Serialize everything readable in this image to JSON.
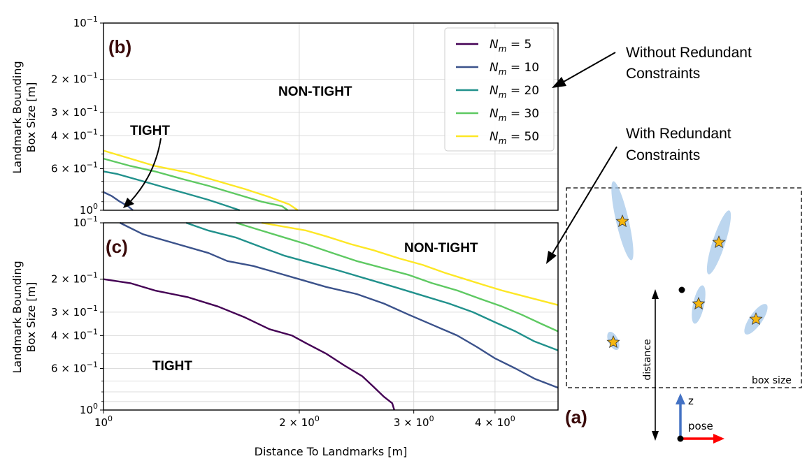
{
  "annotations": {
    "without_redundant": [
      "Without Redundant",
      "Constraints"
    ],
    "with_redundant": [
      "With Redundant",
      "Constraints"
    ]
  },
  "colors": {
    "5": "#440154",
    "10": "#3b528b",
    "20": "#21918c",
    "30": "#5ec962",
    "50": "#fde725",
    "ellipse": "#a6c8ea",
    "star": "#f5b60f",
    "z_arrow": "#4472c4",
    "pose_arrow": "#ff0000"
  },
  "chart_data": [
    {
      "type": "line",
      "panel_label": "(b)",
      "xlabel": "",
      "ylabel": "Landmark Bounding Box Size [m]",
      "ylabel_lines": [
        "Landmark Bounding",
        "Box Size [m]"
      ],
      "xscale": "log",
      "yscale": "log",
      "xlim": [
        1.0,
        5.0
      ],
      "ylim": [
        0.1,
        1.0
      ],
      "y_inverted": true,
      "grid": true,
      "x_ticks": [],
      "y_ticks": [
        {
          "value": 0.1,
          "mant": "10",
          "exp": "−1"
        },
        {
          "value": 0.2,
          "mant": "2 × 10",
          "exp": "−1"
        },
        {
          "value": 0.3,
          "mant": "3 × 10",
          "exp": "−1"
        },
        {
          "value": 0.4,
          "mant": "4 × 10",
          "exp": "−1"
        },
        {
          "value": 0.6,
          "mant": "6 × 10",
          "exp": "−1"
        },
        {
          "value": 1.0,
          "mant": "10",
          "exp": "0"
        }
      ],
      "region_labels": {
        "upper": "NON-TIGHT",
        "lower": "TIGHT"
      },
      "legend": {
        "position": "top-right",
        "entries": [
          {
            "base": "N",
            "sub": "m",
            "label": " =  5",
            "key": "5"
          },
          {
            "base": "N",
            "sub": "m",
            "label": " =  10",
            "key": "10"
          },
          {
            "base": "N",
            "sub": "m",
            "label": " =  20",
            "key": "20"
          },
          {
            "base": "N",
            "sub": "m",
            "label": " =  30",
            "key": "30"
          },
          {
            "base": "N",
            "sub": "m",
            "label": " =  50",
            "key": "50"
          }
        ]
      },
      "series": [
        {
          "key": "10",
          "x": [
            1.0,
            1.03,
            1.06,
            1.09,
            1.11
          ],
          "y": [
            0.8,
            0.84,
            0.9,
            0.95,
            1.0
          ]
        },
        {
          "key": "20",
          "x": [
            1.0,
            1.05,
            1.15,
            1.25,
            1.35,
            1.45,
            1.55,
            1.62
          ],
          "y": [
            0.62,
            0.64,
            0.7,
            0.76,
            0.82,
            0.88,
            0.95,
            1.0
          ]
        },
        {
          "key": "30",
          "x": [
            1.0,
            1.1,
            1.2,
            1.32,
            1.45,
            1.6,
            1.75,
            1.88,
            1.92
          ],
          "y": [
            0.53,
            0.58,
            0.62,
            0.68,
            0.74,
            0.82,
            0.9,
            0.95,
            1.0
          ]
        },
        {
          "key": "50",
          "x": [
            1.0,
            1.08,
            1.2,
            1.35,
            1.5,
            1.65,
            1.8,
            1.93,
            1.99
          ],
          "y": [
            0.48,
            0.52,
            0.58,
            0.63,
            0.7,
            0.77,
            0.85,
            0.93,
            1.0
          ]
        }
      ]
    },
    {
      "type": "line",
      "panel_label": "(c)",
      "xlabel": "Distance To Landmarks [m]",
      "ylabel": "Landmark Bounding Box Size [m]",
      "ylabel_lines": [
        "Landmark Bounding",
        "Box Size [m]"
      ],
      "xscale": "log",
      "yscale": "log",
      "xlim": [
        1.0,
        5.0
      ],
      "ylim": [
        0.1,
        1.0
      ],
      "y_inverted": true,
      "grid": true,
      "x_ticks": [
        {
          "value": 1.0,
          "mant": "10",
          "exp": "0"
        },
        {
          "value": 2.0,
          "mant": "2 × 10",
          "exp": "0"
        },
        {
          "value": 3.0,
          "mant": "3 × 10",
          "exp": "0"
        },
        {
          "value": 4.0,
          "mant": "4 × 10",
          "exp": "0"
        }
      ],
      "y_ticks": [
        {
          "value": 0.1,
          "mant": "10",
          "exp": "−1"
        },
        {
          "value": 0.2,
          "mant": "2 × 10",
          "exp": "−1"
        },
        {
          "value": 0.3,
          "mant": "3 × 10",
          "exp": "−1"
        },
        {
          "value": 0.4,
          "mant": "4 × 10",
          "exp": "−1"
        },
        {
          "value": 0.6,
          "mant": "6 × 10",
          "exp": "−1"
        },
        {
          "value": 1.0,
          "mant": "10",
          "exp": "0"
        }
      ],
      "region_labels": {
        "upper": "NON-TIGHT",
        "lower": "TIGHT"
      },
      "series": [
        {
          "key": "5",
          "x": [
            1.0,
            1.1,
            1.2,
            1.35,
            1.5,
            1.65,
            1.8,
            1.95,
            2.05,
            2.2,
            2.35,
            2.5,
            2.6,
            2.7,
            2.78,
            2.8
          ],
          "y": [
            0.2,
            0.21,
            0.23,
            0.25,
            0.28,
            0.32,
            0.37,
            0.4,
            0.44,
            0.5,
            0.58,
            0.66,
            0.75,
            0.85,
            0.92,
            1.0
          ]
        },
        {
          "key": "10",
          "x": [
            1.06,
            1.15,
            1.3,
            1.45,
            1.55,
            1.7,
            1.85,
            2.0,
            2.2,
            2.45,
            2.7,
            2.95,
            3.2,
            3.5,
            3.75,
            4.0,
            4.3,
            4.6,
            5.0
          ],
          "y": [
            0.1,
            0.115,
            0.13,
            0.145,
            0.16,
            0.17,
            0.185,
            0.2,
            0.22,
            0.24,
            0.27,
            0.31,
            0.35,
            0.4,
            0.46,
            0.53,
            0.6,
            0.68,
            0.76
          ]
        },
        {
          "key": "20",
          "x": [
            1.34,
            1.45,
            1.6,
            1.75,
            1.9,
            2.1,
            2.3,
            2.55,
            2.8,
            3.1,
            3.4,
            3.7,
            4.0,
            4.3,
            4.6,
            5.0
          ],
          "y": [
            0.1,
            0.11,
            0.12,
            0.135,
            0.15,
            0.165,
            0.18,
            0.2,
            0.22,
            0.245,
            0.27,
            0.3,
            0.34,
            0.38,
            0.43,
            0.48
          ]
        },
        {
          "key": "30",
          "x": [
            1.6,
            1.75,
            1.9,
            2.05,
            2.25,
            2.45,
            2.7,
            2.95,
            3.2,
            3.5,
            3.8,
            4.1,
            4.4,
            4.7,
            5.0
          ],
          "y": [
            0.1,
            0.11,
            0.12,
            0.13,
            0.145,
            0.16,
            0.175,
            0.19,
            0.21,
            0.23,
            0.255,
            0.28,
            0.31,
            0.345,
            0.38
          ]
        },
        {
          "key": "50",
          "x": [
            1.75,
            1.9,
            2.05,
            2.2,
            2.4,
            2.6,
            2.85,
            3.1,
            3.35,
            3.6,
            3.85,
            4.1,
            4.4,
            4.7,
            5.0
          ],
          "y": [
            0.1,
            0.105,
            0.11,
            0.118,
            0.13,
            0.14,
            0.155,
            0.168,
            0.185,
            0.2,
            0.215,
            0.23,
            0.245,
            0.26,
            0.275
          ]
        }
      ]
    },
    {
      "type": "diagram",
      "panel_label": "(a)",
      "labels": {
        "distance": "distance",
        "box_size": "box size",
        "z": "z",
        "pose": "pose"
      }
    }
  ]
}
